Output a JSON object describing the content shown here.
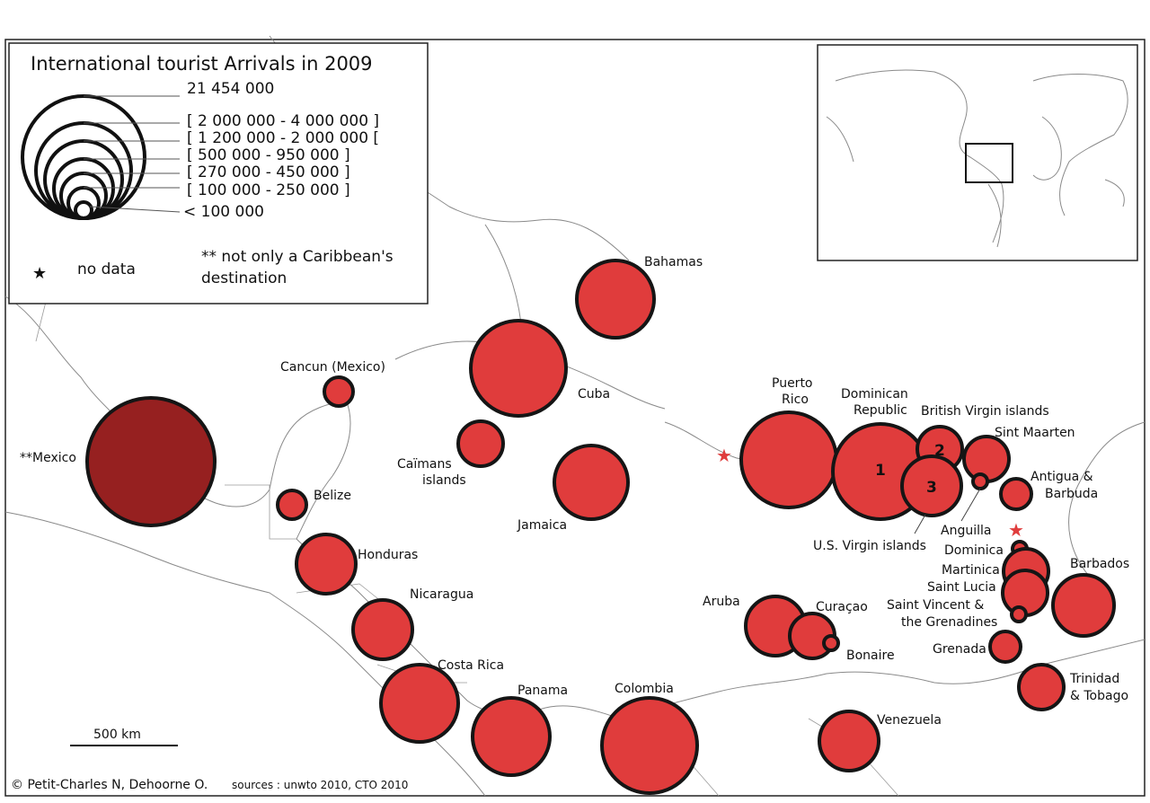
{
  "legend": {
    "title": "International tourist Arrivals in 2009",
    "classes": [
      "21 454 000",
      "[ 2 000 000 - 4 000 000 ]",
      "[ 1 200 000 - 2 000 000 [",
      "[ 500 000 - 950 000 ]",
      "[ 270 000 - 450 000 ]",
      "[ 100 000 - 250 000 ]",
      "< 100 000"
    ],
    "no_data": "no data",
    "note": "** not only a Caribbean's destination"
  },
  "colors": {
    "bubble": "#e03c3c",
    "mexico": "#962020",
    "no_data_star": "#e03c3c"
  },
  "labels": {
    "mexico": "**Mexico",
    "cancun": "Cancun (Mexico)",
    "belize": "Belize",
    "honduras": "Honduras",
    "nicaragua": "Nicaragua",
    "costa_rica": "Costa Rica",
    "panama": "Panama",
    "colombia": "Colombia",
    "venezuela": "Venezuela",
    "cuba": "Cuba",
    "caimans": "Caïmans islands",
    "jamaica": "Jamaica",
    "bahamas": "Bahamas",
    "puerto_rico": "Puerto Rico",
    "dominican_republic": "Dominican Republic",
    "british_virgin": "British Virgin islands",
    "us_virgin": "U.S. Virgin islands",
    "sint_maarten": "Sint Maarten",
    "antigua": "Antigua & Barbuda",
    "anguilla": "Anguilla",
    "dominica": "Dominica",
    "martinica": "Martinica",
    "saint_lucia": "Saint Lucia",
    "saint_vincent": "Saint Vincent & the Grenadines",
    "barbados": "Barbados",
    "grenada": "Grenada",
    "trinidad": "Trinidad & Tobago",
    "aruba": "Aruba",
    "curacao": "Curaçao",
    "bonaire": "Bonaire"
  },
  "bubble_numbers": {
    "dominican_republic": "1",
    "british_virgin": "2",
    "us_virgin": "3"
  },
  "scale_label": "500 km",
  "credits": "© Petit-Charles N, Dehoorne O.",
  "sources": "sources : unwto 2010, CTO 2010"
}
